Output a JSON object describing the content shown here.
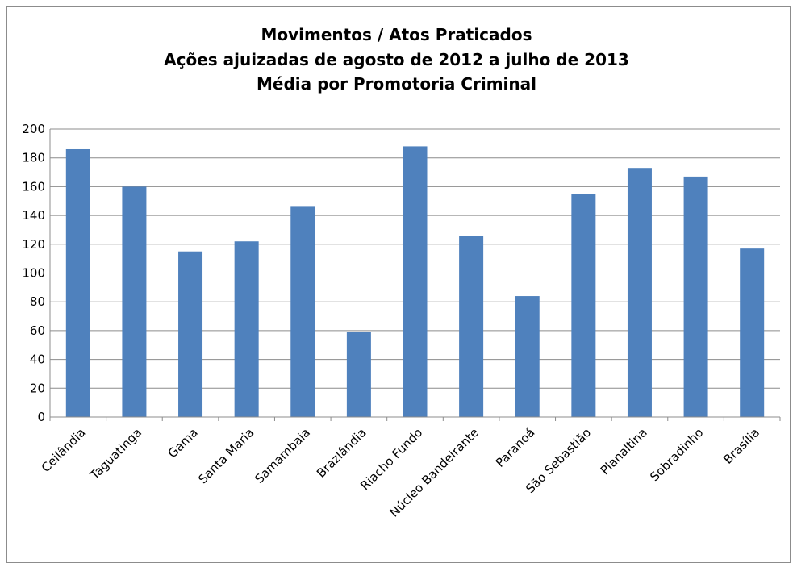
{
  "chart_data": {
    "type": "bar",
    "title_lines": [
      "Movimentos / Atos Praticados",
      "Ações ajuizadas de agosto de 2012 a julho de 2013",
      "Média por Promotoria Criminal"
    ],
    "categories": [
      "Ceilândia",
      "Taguatinga",
      "Gama",
      "Santa Maria",
      "Samambaia",
      "Brazlândia",
      "Riacho Fundo",
      "Núcleo Bandeirante",
      "Paranoá",
      "São Sebastião",
      "Planaltina",
      "Sobradinho",
      "Brasília"
    ],
    "values": [
      186,
      160,
      115,
      122,
      146,
      59,
      188,
      126,
      84,
      155,
      173,
      167,
      117
    ],
    "ylim": [
      0,
      200
    ],
    "yticks": [
      0,
      20,
      40,
      60,
      80,
      100,
      120,
      140,
      160,
      180,
      200
    ],
    "grid": true,
    "bar_color": "#4f81bd",
    "xlabel": "",
    "ylabel": ""
  }
}
